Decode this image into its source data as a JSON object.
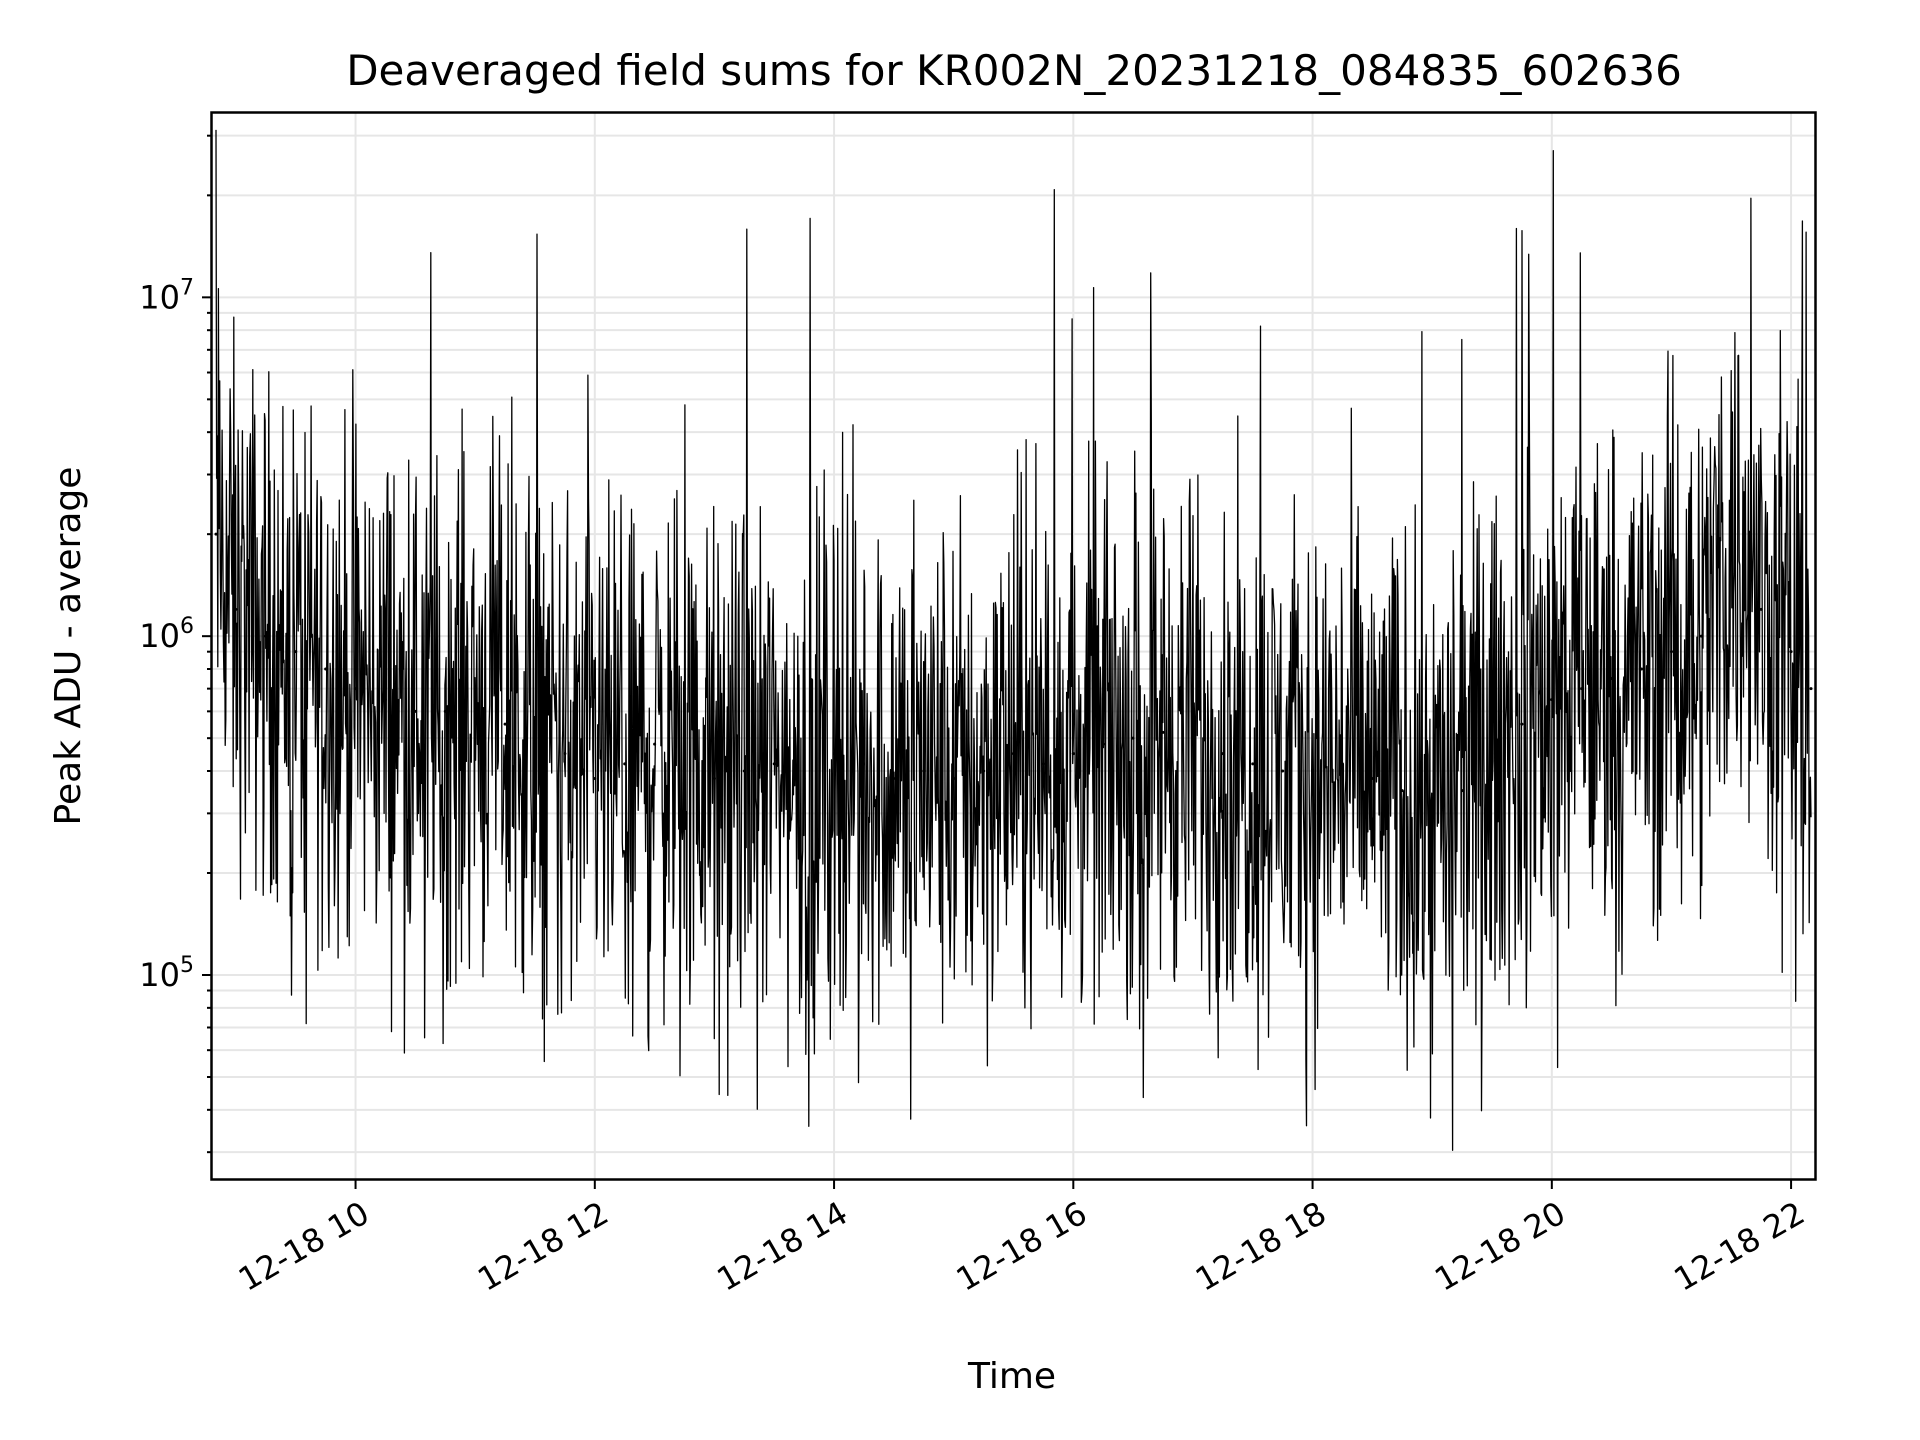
{
  "chart_data": {
    "type": "line",
    "title": "Deaveraged field sums for KR002N_20231218_084835_602636",
    "xlabel": "Time",
    "ylabel": "Peak ADU - average",
    "yscale": "log",
    "ylim": [
      25000,
      35000000
    ],
    "xlim": [
      "2023-12-18 08:48",
      "2023-12-18 22:12"
    ],
    "grid": true,
    "x_ticks": [
      {
        "at": "2023-12-18 10:00",
        "label": "12-18 10"
      },
      {
        "at": "2023-12-18 12:00",
        "label": "12-18 12"
      },
      {
        "at": "2023-12-18 14:00",
        "label": "12-18 14"
      },
      {
        "at": "2023-12-18 16:00",
        "label": "12-18 16"
      },
      {
        "at": "2023-12-18 18:00",
        "label": "12-18 18"
      },
      {
        "at": "2023-12-18 20:00",
        "label": "12-18 20"
      },
      {
        "at": "2023-12-18 22:00",
        "label": "12-18 22"
      }
    ],
    "y_ticks": [
      {
        "value": 100000,
        "base": "10",
        "exp": "5"
      },
      {
        "value": 1000000,
        "base": "10",
        "exp": "6"
      },
      {
        "value": 10000000,
        "base": "10",
        "exp": "7"
      }
    ],
    "series": [
      {
        "color": "#000000",
        "approximate": true,
        "x": [
          "2023-12-18 08:50",
          "2023-12-18 09:00",
          "2023-12-18 09:15",
          "2023-12-18 09:30",
          "2023-12-18 09:45",
          "2023-12-18 10:00",
          "2023-12-18 10:15",
          "2023-12-18 10:30",
          "2023-12-18 10:45",
          "2023-12-18 11:00",
          "2023-12-18 11:15",
          "2023-12-18 11:30",
          "2023-12-18 11:45",
          "2023-12-18 12:00",
          "2023-12-18 12:15",
          "2023-12-18 12:30",
          "2023-12-18 12:45",
          "2023-12-18 13:00",
          "2023-12-18 13:15",
          "2023-12-18 13:30",
          "2023-12-18 13:45",
          "2023-12-18 14:00",
          "2023-12-18 14:15",
          "2023-12-18 14:30",
          "2023-12-18 14:45",
          "2023-12-18 15:00",
          "2023-12-18 15:15",
          "2023-12-18 15:30",
          "2023-12-18 15:45",
          "2023-12-18 16:00",
          "2023-12-18 16:15",
          "2023-12-18 16:30",
          "2023-12-18 16:45",
          "2023-12-18 17:00",
          "2023-12-18 17:15",
          "2023-12-18 17:30",
          "2023-12-18 17:45",
          "2023-12-18 18:00",
          "2023-12-18 18:15",
          "2023-12-18 18:30",
          "2023-12-18 18:45",
          "2023-12-18 19:00",
          "2023-12-18 19:15",
          "2023-12-18 19:30",
          "2023-12-18 19:45",
          "2023-12-18 20:00",
          "2023-12-18 20:15",
          "2023-12-18 20:30",
          "2023-12-18 20:45",
          "2023-12-18 21:00",
          "2023-12-18 21:15",
          "2023-12-18 21:30",
          "2023-12-18 21:45",
          "2023-12-18 22:00",
          "2023-12-18 22:10"
        ],
        "y": [
          2000000,
          1200000,
          1000000,
          900000,
          800000,
          700000,
          650000,
          600000,
          600000,
          650000,
          550000,
          500000,
          450000,
          380000,
          420000,
          480000,
          420000,
          380000,
          400000,
          420000,
          380000,
          450000,
          420000,
          380000,
          400000,
          380000,
          400000,
          450000,
          420000,
          450000,
          480000,
          500000,
          520000,
          480000,
          450000,
          420000,
          400000,
          380000,
          420000,
          380000,
          350000,
          320000,
          350000,
          450000,
          550000,
          650000,
          700000,
          750000,
          800000,
          900000,
          1000000,
          2000000,
          1200000,
          900000,
          700000
        ]
      }
    ]
  }
}
